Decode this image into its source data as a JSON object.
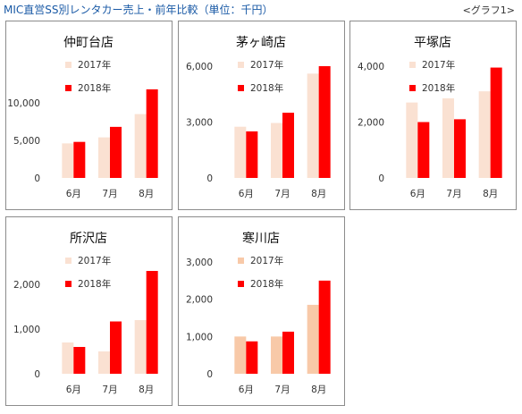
{
  "header": {
    "title": "MIC直営SS別レンタカー売上・前年比較（単位：千円）",
    "graph_label": "<グラフ1>"
  },
  "colors": {
    "s2017": "#fae1d2",
    "s2018": "#ff0000",
    "s2017_alt": "#f8c9a8",
    "border": "#8c8c8c"
  },
  "chart_data": [
    {
      "type": "bar",
      "title": "仲町台店",
      "categories": [
        "6月",
        "7月",
        "8月"
      ],
      "series": [
        {
          "name": "2017年",
          "values": [
            4600,
            5400,
            8500
          ]
        },
        {
          "name": "2018年",
          "values": [
            4800,
            6800,
            11800
          ]
        }
      ],
      "ylim": [
        0,
        12500
      ],
      "yticks": [
        0,
        5000,
        10000
      ],
      "ytick_labels": [
        "0",
        "5,000",
        "10,000"
      ],
      "legend": "upper-left"
    },
    {
      "type": "bar",
      "title": "茅ヶ崎店",
      "categories": [
        "6月",
        "7月",
        "8月"
      ],
      "series": [
        {
          "name": "2017年",
          "values": [
            2750,
            2950,
            5600
          ]
        },
        {
          "name": "2018年",
          "values": [
            2500,
            3500,
            6000
          ]
        }
      ],
      "ylim": [
        0,
        6000
      ],
      "yticks": [
        0,
        3000,
        6000
      ],
      "ytick_labels": [
        "0",
        "3,000",
        "6,000"
      ],
      "legend": "upper-left"
    },
    {
      "type": "bar",
      "title": "平塚店",
      "categories": [
        "6月",
        "7月",
        "8月"
      ],
      "series": [
        {
          "name": "2017年",
          "values": [
            2700,
            2850,
            3100
          ]
        },
        {
          "name": "2018年",
          "values": [
            2000,
            2100,
            3950
          ]
        }
      ],
      "ylim": [
        0,
        4000
      ],
      "yticks": [
        0,
        2000,
        4000
      ],
      "ytick_labels": [
        "0",
        "2,000",
        "4,000"
      ],
      "legend": "upper-left"
    },
    {
      "type": "bar",
      "title": "所沢店",
      "categories": [
        "6月",
        "7月",
        "8月"
      ],
      "series": [
        {
          "name": "2017年",
          "values": [
            700,
            500,
            1200
          ]
        },
        {
          "name": "2018年",
          "values": [
            600,
            1170,
            2300
          ]
        }
      ],
      "ylim": [
        0,
        2500
      ],
      "yticks": [
        0,
        1000,
        2000
      ],
      "ytick_labels": [
        "0",
        "1,000",
        "2,000"
      ],
      "legend": "upper-left"
    },
    {
      "type": "bar",
      "title": "寒川店",
      "categories": [
        "6月",
        "7月",
        "8月"
      ],
      "series": [
        {
          "name": "2017年",
          "values": [
            1000,
            1000,
            1850
          ]
        },
        {
          "name": "2018年",
          "values": [
            870,
            1130,
            2500
          ]
        }
      ],
      "ylim": [
        0,
        3000
      ],
      "yticks": [
        0,
        1000,
        2000,
        3000
      ],
      "ytick_labels": [
        "0",
        "1,000",
        "2,000",
        "3,000"
      ],
      "legend": "upper-left"
    }
  ]
}
